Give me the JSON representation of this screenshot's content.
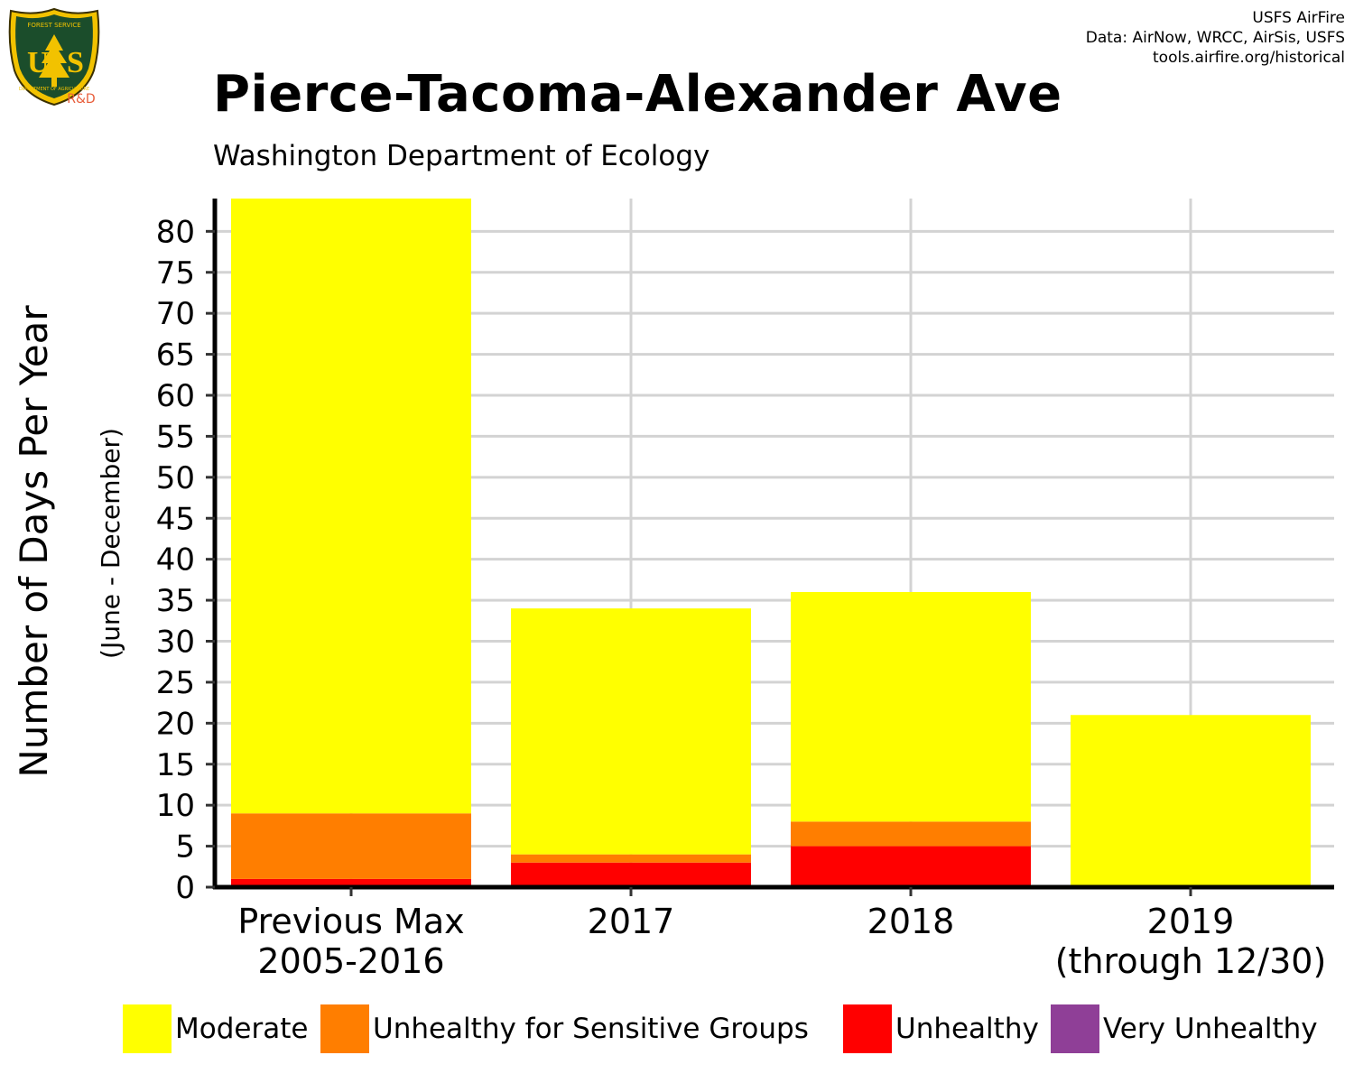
{
  "credits": {
    "line1": "USFS AirFire",
    "line2": "Data: AirNow, WRCC, AirSis, USFS",
    "line3": "tools.airfire.org/historical"
  },
  "logo": {
    "top_text": "FOREST SERVICE",
    "letters": "U S",
    "bottom_text": "DEPARTMENT OF AGRICULTURE",
    "rd_label": "R&D"
  },
  "header": {
    "title": "Pierce-Tacoma-Alexander Ave",
    "subtitle": "Washington Department of Ecology"
  },
  "colors": {
    "moderate": "#ffff00",
    "usg": "#ff7e00",
    "unhealthy": "#ff0000",
    "very_unhealthy": "#8f3f97",
    "grid": "#d3d3d3"
  },
  "chart_data": {
    "type": "bar",
    "stacked": true,
    "ylabel": "Number of Days Per Year",
    "ylabel_sub": "(June - December)",
    "xlabel": "",
    "ylim": [
      0,
      84
    ],
    "yticks": [
      0,
      5,
      10,
      15,
      20,
      25,
      30,
      35,
      40,
      45,
      50,
      55,
      60,
      65,
      70,
      75,
      80
    ],
    "grid": true,
    "categories": [
      [
        "Previous Max",
        "2005-2016"
      ],
      [
        "2017"
      ],
      [
        "2018"
      ],
      [
        "2019",
        "(through 12/30)"
      ]
    ],
    "series": [
      {
        "name": "Very Unhealthy",
        "key": "very_unhealthy",
        "values": [
          0,
          0,
          0,
          0
        ]
      },
      {
        "name": "Unhealthy",
        "key": "unhealthy",
        "values": [
          1,
          3,
          5,
          0
        ]
      },
      {
        "name": "Unhealthy for Sensitive Groups",
        "key": "usg",
        "values": [
          8,
          1,
          3,
          0
        ]
      },
      {
        "name": "Moderate",
        "key": "moderate",
        "values": [
          75,
          30,
          28,
          21
        ]
      }
    ],
    "legend": {
      "position": "bottom",
      "order": [
        "Moderate",
        "Unhealthy for Sensitive Groups",
        "Unhealthy",
        "Very Unhealthy"
      ]
    }
  }
}
